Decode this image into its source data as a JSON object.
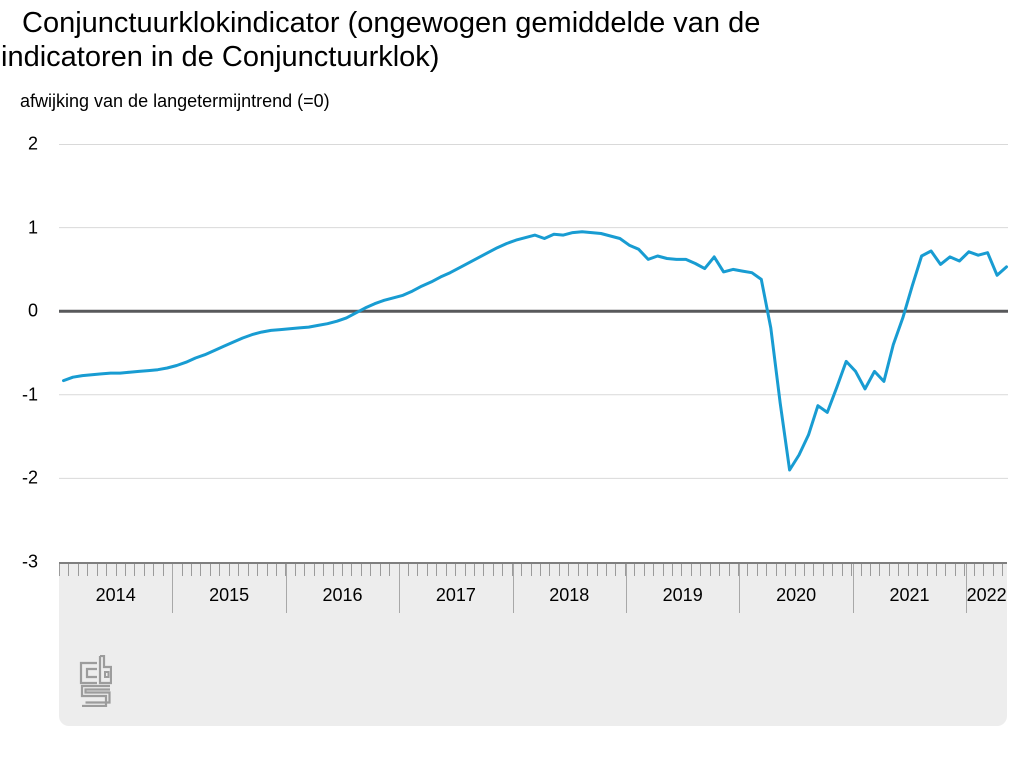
{
  "chart": {
    "title_line1": "Conjunctuurklokindicator (ongewogen gemiddelde van de",
    "title_line2": "indicatoren in de Conjunctuurklok)",
    "subtitle": "afwijking van de langetermijntrend (=0)"
  },
  "icons": {
    "footer_logo": "cbs-logo"
  },
  "chart_data": {
    "type": "line",
    "title": "Conjunctuurklokindicator (ongewogen gemiddelde van de indicatoren in de Conjunctuurklok)",
    "subtitle": "afwijking van de langetermijntrend (=0)",
    "frequency": "monthly",
    "x_start": "2014-01",
    "x_end": "2022-05",
    "years": [
      "2014",
      "2015",
      "2016",
      "2017",
      "2018",
      "2019",
      "2020",
      "2021",
      "2022"
    ],
    "ylim": [
      -3,
      2
    ],
    "yticks": [
      2,
      1,
      0,
      -1,
      -2,
      -3
    ],
    "grid": true,
    "legend": false,
    "zero_line": true,
    "series": [
      {
        "name": "Conjunctuurklokindicator",
        "color": "#189cd2",
        "values": [
          -0.83,
          -0.79,
          -0.77,
          -0.76,
          -0.75,
          -0.74,
          -0.74,
          -0.73,
          -0.72,
          -0.71,
          -0.7,
          -0.68,
          -0.65,
          -0.61,
          -0.56,
          -0.52,
          -0.47,
          -0.42,
          -0.37,
          -0.32,
          -0.28,
          -0.25,
          -0.23,
          -0.22,
          -0.21,
          -0.2,
          -0.19,
          -0.17,
          -0.15,
          -0.12,
          -0.08,
          -0.02,
          0.04,
          0.09,
          0.13,
          0.16,
          0.19,
          0.24,
          0.3,
          0.35,
          0.41,
          0.46,
          0.52,
          0.58,
          0.64,
          0.7,
          0.76,
          0.81,
          0.85,
          0.88,
          0.91,
          0.87,
          0.92,
          0.91,
          0.94,
          0.95,
          0.94,
          0.93,
          0.9,
          0.87,
          0.79,
          0.74,
          0.62,
          0.66,
          0.63,
          0.62,
          0.62,
          0.57,
          0.51,
          0.65,
          0.47,
          0.5,
          0.48,
          0.46,
          0.38,
          -0.2,
          -1.1,
          -1.9,
          -1.72,
          -1.48,
          -1.13,
          -1.21,
          -0.91,
          -0.6,
          -0.72,
          -0.93,
          -0.72,
          -0.84,
          -0.4,
          -0.08,
          0.3,
          0.66,
          0.72,
          0.56,
          0.65,
          0.6,
          0.71,
          0.67,
          0.7,
          0.43,
          0.53
        ]
      }
    ],
    "colors": {
      "line": "#189cd2",
      "zero_line": "#58595b",
      "grid": "#d9d9d9",
      "axis_band_bg": "#ededed",
      "axis_band_border": "#7f7f7f",
      "tick": "#9b9b9b",
      "year_separator": "#a8a8a8",
      "text": "#000000",
      "logo": "#9c9c9c"
    }
  }
}
